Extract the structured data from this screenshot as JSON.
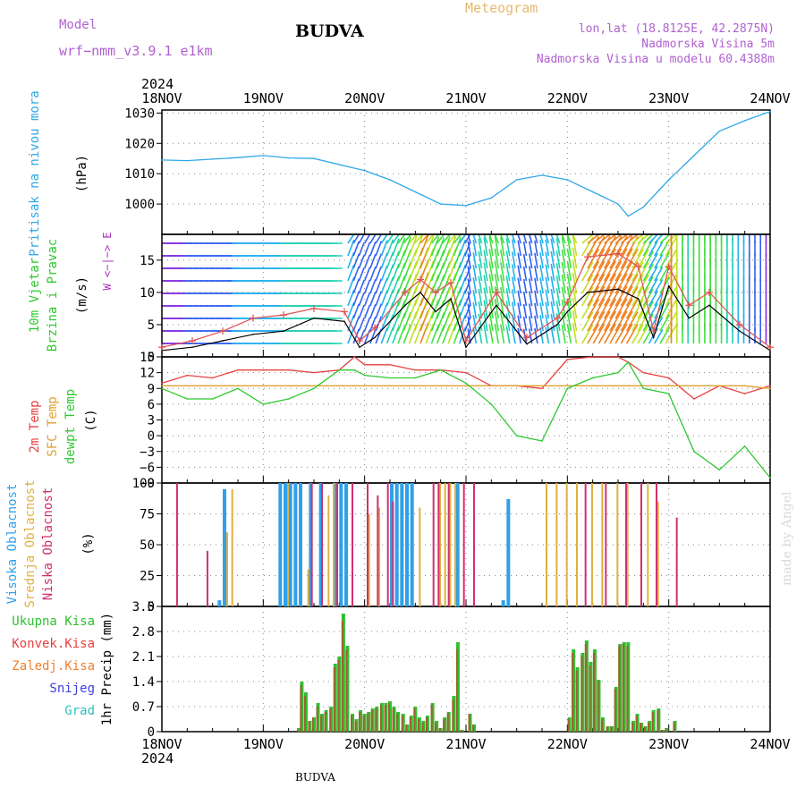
{
  "header": {
    "model_label": "Model",
    "model_name": "wrf−nmm_v3.9.1  e1km",
    "station": "BUDVA",
    "meteogram_label": "Meteogram",
    "location": "lon,lat (18.8125E, 42.2875N)",
    "altitude": "Nadmorska Visina 5m",
    "model_altitude": "Nadmorska Visina u modelu 60.4388m"
  },
  "time_axis": {
    "year": "2024",
    "labels": [
      "18NOV",
      "19NOV",
      "20NOV",
      "21NOV",
      "22NOV",
      "23NOV",
      "24NOV"
    ]
  },
  "footer": {
    "station": "BUDVA",
    "credit": "made by Angel"
  },
  "colors": {
    "pressure": "#30a8e8",
    "temp_2m": "#e84040",
    "sfc_temp": "#e0a030",
    "dewpoint": "#30c830",
    "high_cloud": "#30a0e8",
    "mid_cloud": "#e0b040",
    "low_cloud": "#d03070",
    "total_precip": "#30c030",
    "conv_precip": "#e84040",
    "frz_precip": "#f08030",
    "snow": "#4040e0",
    "graupel": "#30c0c0",
    "panel_label_purple": "#b030c0"
  },
  "chart_data": [
    {
      "type": "line",
      "name": "pressure",
      "ylabel_lines": [
        "Pritisak na nivou mora"
      ],
      "unit": "(hPa)",
      "ylim": [
        990,
        1031
      ],
      "yticks": [
        1000,
        1010,
        1020,
        1030
      ],
      "ytick_labels": [
        "1000",
        "1010",
        "1020",
        "1030"
      ],
      "x": [
        0,
        0.25,
        0.5,
        0.75,
        1,
        1.25,
        1.5,
        1.75,
        2,
        2.25,
        2.5,
        2.75,
        3,
        3.25,
        3.5,
        3.75,
        4,
        4.25,
        4.5,
        4.6,
        4.75,
        5,
        5.25,
        5.5,
        5.75,
        6
      ],
      "series": [
        {
          "values": [
            1014.5,
            1014.3,
            1014.8,
            1015.3,
            1016.0,
            1015.2,
            1015.0,
            1013.0,
            1011.0,
            1008.0,
            1004.0,
            1000.0,
            999.5,
            1002.0,
            1008.0,
            1009.5,
            1008.0,
            1004.0,
            1000.0,
            996.0,
            999.0,
            1008.0,
            1016.0,
            1024.0,
            1027.5,
            1030.5
          ]
        }
      ]
    },
    {
      "type": "line",
      "name": "wind",
      "ylabel_lines": [
        "10m Vjetar",
        "Brzina i Pravac"
      ],
      "unit": "(m/s)",
      "compass": "W <−|−> E",
      "ylim": [
        0,
        19
      ],
      "yticks": [
        0,
        5,
        10,
        15
      ],
      "ytick_labels": [
        "0",
        "5",
        "10",
        "15"
      ],
      "x": [
        0,
        0.3,
        0.6,
        0.9,
        1.2,
        1.5,
        1.8,
        1.95,
        2.1,
        2.4,
        2.55,
        2.7,
        2.85,
        3.0,
        3.3,
        3.6,
        3.9,
        4.0,
        4.2,
        4.5,
        4.7,
        4.85,
        5.0,
        5.2,
        5.4,
        5.7,
        6
      ],
      "series": [
        {
          "name": "speed",
          "values": [
            1.0,
            1.5,
            2.5,
            3.5,
            4.0,
            6.0,
            5.5,
            1.5,
            3.0,
            8.0,
            10.0,
            7.0,
            9.0,
            1.5,
            8.0,
            2.0,
            5.0,
            7.0,
            10.0,
            10.5,
            9.0,
            3.0,
            11.0,
            6.0,
            8.0,
            4.0,
            1.0
          ]
        },
        {
          "name": "gust",
          "values": [
            1.5,
            2.5,
            4.0,
            6.0,
            6.5,
            7.5,
            7.0,
            2.5,
            4.5,
            10.0,
            12.0,
            10.0,
            11.5,
            2.5,
            10.0,
            3.0,
            6.0,
            8.5,
            15.5,
            16.0,
            14.0,
            4.0,
            14.0,
            8.0,
            10.0,
            5.0,
            1.5
          ]
        }
      ]
    },
    {
      "type": "line",
      "name": "temperature",
      "ylabel_lines": [
        "2m Temp",
        "SFC Temp",
        "dewpt Temp"
      ],
      "unit": "(C)",
      "ylim": [
        -9,
        15
      ],
      "yticks": [
        -9,
        -6,
        -3,
        0,
        3,
        6,
        9,
        12,
        15
      ],
      "ytick_labels": [
        "−9",
        "−6",
        "−3",
        "0",
        "3",
        "6",
        "9",
        "12",
        "15"
      ],
      "x": [
        0,
        0.25,
        0.5,
        0.75,
        1,
        1.25,
        1.5,
        1.75,
        1.9,
        2.0,
        2.25,
        2.5,
        2.75,
        3.0,
        3.25,
        3.5,
        3.75,
        4.0,
        4.25,
        4.5,
        4.6,
        4.75,
        5.0,
        5.25,
        5.5,
        5.75,
        6
      ],
      "series": [
        {
          "name": "2m Temp",
          "values": [
            10.0,
            11.5,
            11.0,
            12.5,
            12.5,
            12.5,
            12.0,
            12.5,
            15.0,
            13.5,
            13.5,
            12.5,
            12.5,
            12.0,
            9.5,
            9.5,
            9.0,
            14.5,
            15.0,
            15.0,
            14.0,
            12.0,
            11.0,
            7.0,
            9.5,
            8.0,
            9.5
          ]
        },
        {
          "name": "SFC Temp",
          "values": [
            9.5,
            9.5,
            9.5,
            9.5,
            9.5,
            9.5,
            9.5,
            9.5,
            9.5,
            9.5,
            9.5,
            9.5,
            9.5,
            9.5,
            9.5,
            9.5,
            9.5,
            9.5,
            9.5,
            9.5,
            9.5,
            9.5,
            9.5,
            9.5,
            9.5,
            9.5,
            9.0
          ]
        },
        {
          "name": "dewpt Temp",
          "values": [
            9.0,
            7.0,
            7.0,
            9.0,
            6.0,
            7.0,
            9.0,
            12.5,
            12.5,
            11.5,
            11.0,
            11.0,
            12.5,
            10.0,
            6.0,
            0.0,
            -1.0,
            9.0,
            11.0,
            12.0,
            14.0,
            9.0,
            8.0,
            -3.0,
            -6.5,
            -2.0,
            -8.0
          ]
        }
      ]
    },
    {
      "type": "bar",
      "name": "cloud_cover",
      "ylabel_lines": [
        "Visoka Oblacnost",
        "Srednja Oblacnost",
        "Niska Oblacnost"
      ],
      "unit": "(%)",
      "ylim": [
        0,
        100
      ],
      "yticks": [
        0,
        25,
        50,
        75,
        100
      ],
      "ytick_labels": [
        "0",
        "25",
        "50",
        "75",
        "100"
      ],
      "series": [
        {
          "name": "Visoka Oblacnost",
          "x": [
            0.55,
            0.6,
            1.15,
            1.2,
            1.25,
            1.3,
            1.35,
            1.45,
            1.55,
            1.7,
            1.75,
            1.8,
            2.25,
            2.3,
            2.35,
            2.4,
            2.45,
            2.9,
            3.35,
            3.4
          ],
          "values": [
            5,
            95,
            100,
            100,
            100,
            100,
            100,
            100,
            100,
            100,
            100,
            100,
            100,
            100,
            100,
            100,
            100,
            100,
            5,
            87
          ]
        },
        {
          "name": "Srednja Oblacnost",
          "x": [
            0.6,
            0.65,
            1.2,
            1.4,
            1.6,
            1.65,
            2.0,
            2.1,
            2.5,
            2.7,
            2.75,
            2.8,
            2.85,
            3.75,
            3.85,
            3.95,
            4.05,
            4.2,
            4.3,
            4.45,
            4.55,
            4.75,
            4.85
          ],
          "values": [
            60,
            95,
            100,
            30,
            90,
            100,
            75,
            80,
            80,
            100,
            100,
            100,
            100,
            100,
            100,
            100,
            100,
            100,
            100,
            100,
            100,
            100,
            85
          ]
        },
        {
          "name": "Niska Oblacnost",
          "x": [
            0.07,
            0.37,
            1.4,
            1.5,
            1.65,
            1.8,
            1.95,
            2.05,
            2.15,
            2.2,
            2.6,
            2.65,
            2.75,
            2.9,
            3.0,
            4.1,
            4.3,
            4.5,
            4.65,
            4.8,
            5.0
          ],
          "values": [
            100,
            45,
            100,
            100,
            100,
            100,
            100,
            90,
            100,
            85,
            100,
            100,
            100,
            100,
            100,
            100,
            100,
            100,
            100,
            100,
            72
          ]
        }
      ]
    },
    {
      "type": "bar",
      "name": "precipitation",
      "ylabel_lines": [
        "1hr Precip (mm)"
      ],
      "legend": [
        "Ukupna  Kisa",
        "Konvek.Kisa",
        "Zaledj.Kisa",
        "Snijeg",
        "Grad"
      ],
      "ylim": [
        0,
        3.5
      ],
      "yticks": [
        0,
        0.7,
        1.4,
        2.1,
        2.8,
        3.5
      ],
      "ytick_labels": [
        "0",
        "0.7",
        "1.4",
        "2.1",
        "2.8",
        "3.5"
      ],
      "x": [
        1.35,
        1.38,
        1.42,
        1.46,
        1.5,
        1.54,
        1.58,
        1.62,
        1.67,
        1.71,
        1.75,
        1.79,
        1.83,
        1.88,
        1.92,
        1.96,
        2.0,
        2.04,
        2.08,
        2.12,
        2.17,
        2.21,
        2.25,
        2.29,
        2.33,
        2.38,
        2.42,
        2.46,
        2.5,
        2.54,
        2.58,
        2.62,
        2.67,
        2.71,
        2.75,
        2.79,
        2.83,
        2.88,
        2.92,
        2.96,
        3.04,
        3.08,
        4.02,
        4.06,
        4.1,
        4.15,
        4.19,
        4.23,
        4.27,
        4.31,
        4.35,
        4.4,
        4.44,
        4.48,
        4.52,
        4.56,
        4.6,
        4.65,
        4.69,
        4.73,
        4.77,
        4.81,
        4.85,
        4.9,
        4.94,
        4.98,
        5.06
      ],
      "series": [
        {
          "name": "Ukupna  Kisa",
          "values": [
            0.1,
            1.4,
            1.1,
            0.3,
            0.4,
            0.8,
            0.5,
            0.6,
            0.7,
            1.9,
            2.1,
            3.3,
            2.4,
            0.5,
            0.35,
            0.6,
            0.5,
            0.55,
            0.65,
            0.7,
            0.8,
            0.8,
            0.85,
            0.7,
            0.55,
            0.5,
            0.2,
            0.45,
            0.7,
            0.4,
            0.3,
            0.45,
            0.8,
            0.3,
            0.1,
            0.4,
            0.55,
            1.0,
            2.5,
            0.05,
            0.5,
            0.2,
            0.4,
            2.3,
            1.8,
            2.2,
            2.55,
            1.95,
            2.3,
            1.45,
            0.4,
            0.15,
            0.15,
            1.25,
            2.45,
            2.5,
            2.5,
            0.3,
            0.5,
            0.25,
            0.15,
            0.3,
            0.6,
            0.65,
            0.05,
            0.1,
            0.3
          ]
        },
        {
          "name": "Konvek.Kisa",
          "values": [
            0.05,
            1.3,
            1.0,
            0.3,
            0.4,
            0.7,
            0.45,
            0.55,
            0.65,
            1.8,
            2.0,
            3.1,
            2.3,
            0.45,
            0.3,
            0.55,
            0.45,
            0.5,
            0.6,
            0.65,
            0.75,
            0.75,
            0.8,
            0.65,
            0.5,
            0.45,
            0.2,
            0.4,
            0.65,
            0.35,
            0.25,
            0.4,
            0.75,
            0.25,
            0.1,
            0.35,
            0.5,
            0.9,
            2.3,
            0.05,
            0.5,
            0.2,
            0.35,
            2.2,
            1.7,
            2.1,
            2.45,
            1.85,
            2.2,
            1.4,
            0.35,
            0.15,
            0.15,
            1.2,
            2.4,
            2.45,
            2.4,
            0.25,
            0.45,
            0.25,
            0.15,
            0.25,
            0.55,
            0.6,
            0.05,
            0.1,
            0.25
          ]
        }
      ]
    }
  ]
}
